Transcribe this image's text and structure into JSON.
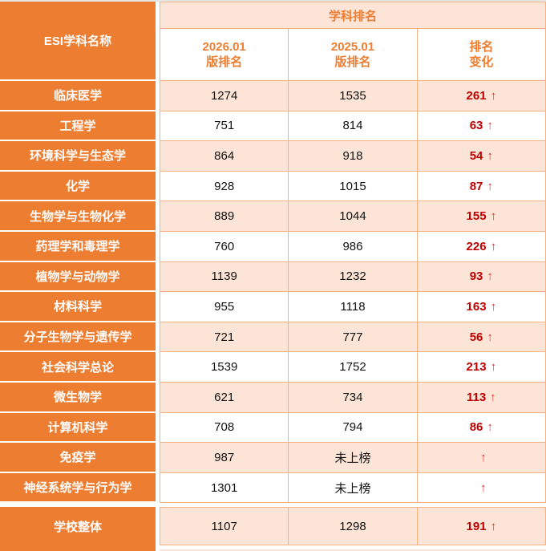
{
  "table": {
    "corner_header": "ESI学科名称",
    "group_header": "学科排名",
    "col_headers": [
      {
        "line1": "2026.01",
        "line2": "版排名"
      },
      {
        "line1": "2025.01",
        "line2": "版排名"
      },
      {
        "line1": "排名",
        "line2": "变化"
      }
    ],
    "rows": [
      {
        "name": "临床医学",
        "rank_2026": "1274",
        "rank_2025": "1535",
        "change": "261",
        "arrow": "↑"
      },
      {
        "name": "工程学",
        "rank_2026": "751",
        "rank_2025": "814",
        "change": "63",
        "arrow": "↑"
      },
      {
        "name": "环境科学与生态学",
        "rank_2026": "864",
        "rank_2025": "918",
        "change": "54",
        "arrow": "↑"
      },
      {
        "name": "化学",
        "rank_2026": "928",
        "rank_2025": "1015",
        "change": "87",
        "arrow": "↑"
      },
      {
        "name": "生物学与生物化学",
        "rank_2026": "889",
        "rank_2025": "1044",
        "change": "155",
        "arrow": "↑"
      },
      {
        "name": "药理学和毒理学",
        "rank_2026": "760",
        "rank_2025": "986",
        "change": "226",
        "arrow": "↑"
      },
      {
        "name": "植物学与动物学",
        "rank_2026": "1139",
        "rank_2025": "1232",
        "change": "93",
        "arrow": "↑"
      },
      {
        "name": "材料科学",
        "rank_2026": "955",
        "rank_2025": "1118",
        "change": "163",
        "arrow": "↑"
      },
      {
        "name": "分子生物学与遗传学",
        "rank_2026": "721",
        "rank_2025": "777",
        "change": "56",
        "arrow": "↑"
      },
      {
        "name": "社会科学总论",
        "rank_2026": "1539",
        "rank_2025": "1752",
        "change": "213",
        "arrow": "↑"
      },
      {
        "name": "微生物学",
        "rank_2026": "621",
        "rank_2025": "734",
        "change": "113",
        "arrow": "↑"
      },
      {
        "name": "计算机科学",
        "rank_2026": "708",
        "rank_2025": "794",
        "change": "86",
        "arrow": "↑"
      },
      {
        "name": "免疫学",
        "rank_2026": "987",
        "rank_2025": "未上榜",
        "change": "",
        "arrow": "↑"
      },
      {
        "name": "神经系统学与行为学",
        "rank_2026": "1301",
        "rank_2025": "未上榜",
        "change": "",
        "arrow": "↑"
      }
    ],
    "summary_row": {
      "name": "学校整体",
      "rank_2026": "1107",
      "rank_2025": "1298",
      "change": "191",
      "arrow": "↑"
    }
  },
  "colors": {
    "accent_orange": "#ED7D31",
    "peach_fill": "#FCE4D6",
    "grid_border": "#F4B183",
    "change_number_red": "#C00000",
    "arrow_red": "#E03434",
    "number_text": "#111111",
    "header_text_on_orange": "#ffffff"
  }
}
